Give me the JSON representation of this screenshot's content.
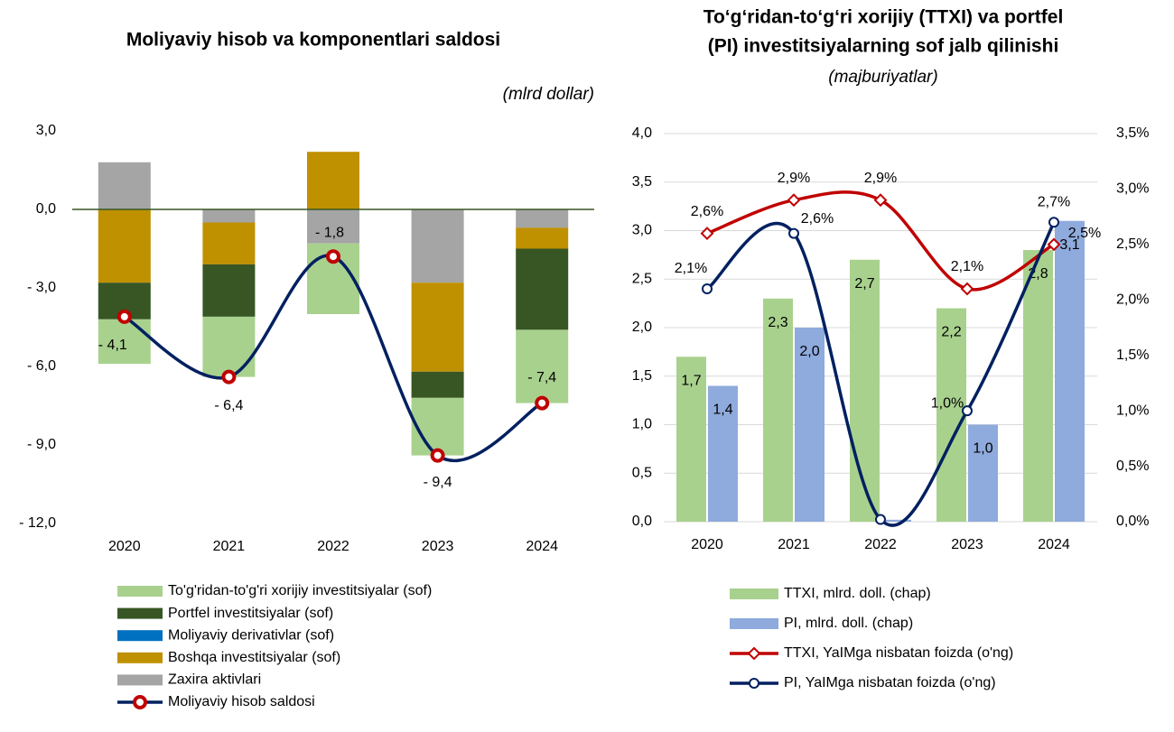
{
  "chart_data": [
    {
      "type": "bar",
      "stacked": true,
      "grid": false,
      "title": [
        "Moliyaviy hisob va komponentlari saldosi"
      ],
      "annotation": "(mlrd dollar)",
      "categories": [
        "2020",
        "2021",
        "2022",
        "2023",
        "2024"
      ],
      "ylim": [
        -12,
        3
      ],
      "yticks": [
        {
          "value": -12,
          "label": "- 12,0"
        },
        {
          "value": -9,
          "label": "- 9,0"
        },
        {
          "value": -6,
          "label": "- 6,0"
        },
        {
          "value": -3,
          "label": "- 3,0"
        },
        {
          "value": 0,
          "label": "0,0"
        },
        {
          "value": 3,
          "label": "3,0"
        }
      ],
      "series": [
        {
          "name": "To'g'ridan-to'g'ri xorijiy investitsiyalar (sof)",
          "color": "#a9d18e",
          "values": [
            -1.7,
            -2.3,
            -2.7,
            -2.2,
            -2.8
          ]
        },
        {
          "name": "Portfel investitsiyalar (sof)",
          "color": "#375623",
          "values": [
            -1.4,
            -2.0,
            0,
            -1.0,
            -3.1
          ]
        },
        {
          "name": "Moliyaviy derivativlar (sof)",
          "color": "#0070c0",
          "values": [
            0,
            0,
            0,
            0,
            0
          ]
        },
        {
          "name": "Boshqa investitsiyalar (sof)",
          "color": "#bf9000",
          "values": [
            -2.8,
            -1.6,
            2.2,
            -3.4,
            -0.8
          ]
        },
        {
          "name": "Zaxira aktivlari",
          "color": "#a5a5a5",
          "values": [
            1.8,
            -0.5,
            -1.3,
            -2.8,
            -0.7
          ]
        },
        {
          "name": "Moliyaviy hisob saldosi",
          "type": "line",
          "color": "#002060",
          "marker": "circle",
          "marker_color": "#c00000",
          "values": [
            -4.1,
            -6.4,
            -1.8,
            -9.4,
            -7.4
          ],
          "value_labels": [
            "- 4,1",
            "- 6,4",
            "- 1,8",
            "- 9,4",
            "- 7,4"
          ]
        }
      ]
    },
    {
      "type": "bar",
      "stacked": false,
      "grid": true,
      "title": [
        "To‘g‘ridan-to‘g‘ri xorijiy (TTXI) va portfel",
        "(PI) investitsiyalarning sof jalb qilinishi"
      ],
      "subtitle": "(majburiyatlar)",
      "categories": [
        "2020",
        "2021",
        "2022",
        "2023",
        "2024"
      ],
      "ylim": [
        0,
        4
      ],
      "yticks": [
        {
          "value": 0,
          "label": "0,0"
        },
        {
          "value": 0.5,
          "label": "0,5"
        },
        {
          "value": 1,
          "label": "1,0"
        },
        {
          "value": 1.5,
          "label": "1,5"
        },
        {
          "value": 2,
          "label": "2,0"
        },
        {
          "value": 2.5,
          "label": "2,5"
        },
        {
          "value": 3,
          "label": "3,0"
        },
        {
          "value": 3.5,
          "label": "3,5"
        },
        {
          "value": 4,
          "label": "4,0"
        }
      ],
      "y2lim": [
        0,
        3.5
      ],
      "y2ticks": [
        {
          "value": 0,
          "label": "0,0%"
        },
        {
          "value": 0.5,
          "label": "0,5%"
        },
        {
          "value": 1,
          "label": "1,0%"
        },
        {
          "value": 1.5,
          "label": "1,5%"
        },
        {
          "value": 2,
          "label": "2,0%"
        },
        {
          "value": 2.5,
          "label": "2,5%"
        },
        {
          "value": 3,
          "label": "3,0%"
        },
        {
          "value": 3.5,
          "label": "3,5%"
        }
      ],
      "series": [
        {
          "name": "TTXI, mlrd. doll. (chap)",
          "color": "#a9d18e",
          "values": [
            1.7,
            2.3,
            2.7,
            2.2,
            2.8
          ],
          "value_labels": [
            "1,7",
            "2,3",
            "2,7",
            "2,2",
            "2,8"
          ]
        },
        {
          "name": "PI, mlrd. doll. (chap)",
          "color": "#8faadc",
          "values": [
            1.4,
            2.0,
            0.02,
            1.0,
            3.1
          ],
          "value_labels": [
            "1,4",
            "2,0",
            null,
            "1,0",
            "3,1"
          ]
        },
        {
          "name": "TTXI, YaIMga nisbatan foizda (o'ng)",
          "type": "line",
          "axis": "y2",
          "color": "#c00000",
          "marker": "diamond",
          "values": [
            2.6,
            2.9,
            2.9,
            2.1,
            2.5
          ],
          "value_labels": [
            "2,6%",
            "2,9%",
            "2,9%",
            "2,1%",
            "2,5%"
          ]
        },
        {
          "name": "PI, YaIMga nisbatan foizda (o'ng)",
          "type": "line",
          "axis": "y2",
          "color": "#002060",
          "marker": "circle",
          "values": [
            2.1,
            2.6,
            0.02,
            1.0,
            2.7
          ],
          "value_labels": [
            "2,1%",
            "2,6%",
            null,
            "1,0%",
            "2,7%"
          ]
        }
      ]
    }
  ]
}
